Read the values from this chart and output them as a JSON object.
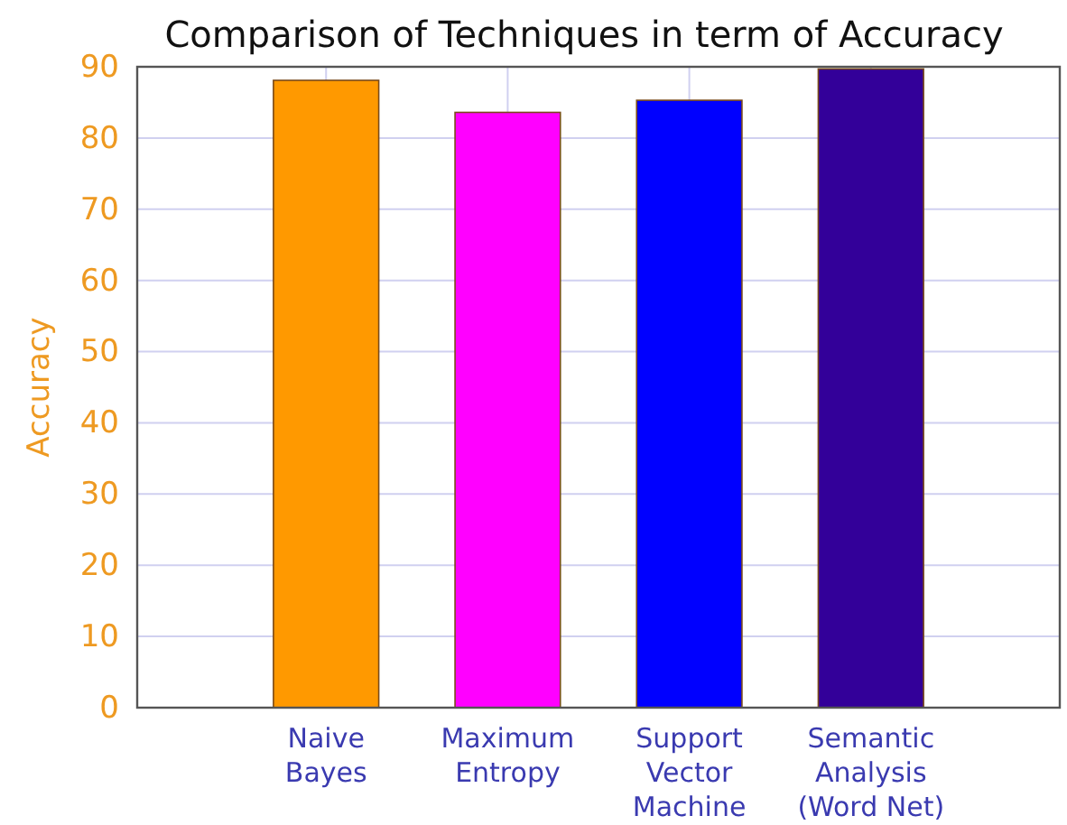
{
  "chart_data": {
    "type": "bar",
    "title": "Comparison of Techniques in term of Accuracy",
    "ylabel": "Accuracy",
    "categories": [
      "Naive\nBayes",
      "Maximum\nEntropy",
      "Support\nVector\nMachine",
      "Semantic\nAnalysis\n(Word Net)"
    ],
    "values": [
      88.1,
      83.6,
      85.3,
      89.7
    ],
    "colors": [
      "#ff9900",
      "#ff00ff",
      "#0000ff",
      "#330099"
    ],
    "ylim": [
      0,
      90
    ],
    "yticks": [
      0,
      10,
      20,
      30,
      40,
      50,
      60,
      70,
      80,
      90
    ],
    "grid": true
  }
}
